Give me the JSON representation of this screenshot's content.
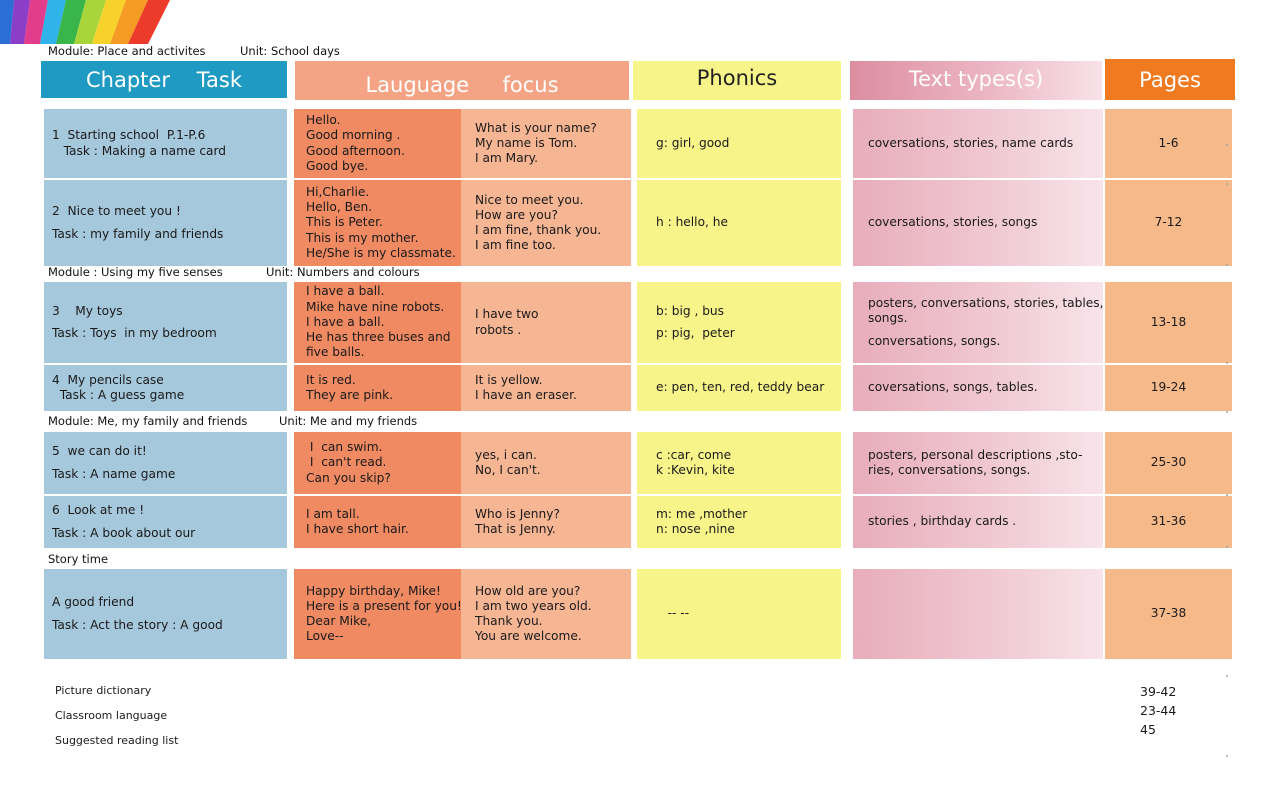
{
  "headers": {
    "chapter": "Chapter    Task",
    "language": "Lauguage     focus",
    "phonics": "Phonics",
    "text_types": "Text types(s)",
    "pages": "Pages"
  },
  "modules": [
    {
      "module": "Module: Place and activites",
      "unit": "Unit: School days"
    },
    {
      "module": "Module : Using my five senses",
      "unit": "Unit: Numbers and colours"
    },
    {
      "module": "Module:  Me, my family and friends",
      "unit": "Unit: Me and my friends"
    },
    {
      "module": "Story time",
      "unit": ""
    }
  ],
  "rows": [
    {
      "chapter": [
        "1  Starting school  P.1-P.6",
        "   Task : Making a name card"
      ],
      "lang_a": [
        "Hello.",
        "Good morning .",
        "Good afternoon.",
        "Good bye."
      ],
      "lang_b": [
        "What is your name?",
        "My name is Tom.",
        "I am Mary."
      ],
      "phonics": [
        "g: girl, good"
      ],
      "text_types": [
        "coversations, stories, name cards"
      ],
      "pages": "1-6"
    },
    {
      "chapter": [
        "2  Nice to meet you !",
        "",
        "Task : my family and friends"
      ],
      "lang_a": [
        "Hi,Charlie.",
        "Hello, Ben.",
        "This is Peter.",
        "This is my mother.",
        "He/She is my classmate."
      ],
      "lang_b": [
        "Nice to meet you.",
        "How are you?",
        "I am fine, thank you.",
        "I am fine too."
      ],
      "phonics": [
        "h : hello, he"
      ],
      "text_types": [
        "coversations, stories, songs"
      ],
      "pages": "7-12"
    },
    {
      "chapter": [
        "3    My toys",
        "",
        "Task : Toys  in my bedroom"
      ],
      "lang_a": [
        "I have a ball.",
        "Mike have nine robots.",
        "I have a ball.",
        "He has three buses and",
        "five balls."
      ],
      "lang_b": [
        "I have two",
        "robots ."
      ],
      "phonics": [
        "b: big , bus",
        "",
        "p: pig,  peter"
      ],
      "text_types": [
        "posters, conversations, stories, tables,",
        "songs.",
        "",
        "conversations, songs."
      ],
      "pages": "13-18"
    },
    {
      "chapter": [
        "4  My pencils case",
        "  Task : A guess game"
      ],
      "lang_a": [
        "It is red.",
        "They are pink."
      ],
      "lang_b": [
        "It is yellow.",
        "I have an eraser."
      ],
      "phonics": [
        "e: pen, ten, red, teddy bear"
      ],
      "text_types": [
        "coversations, songs, tables."
      ],
      "pages": "19-24"
    },
    {
      "chapter": [
        "5  we can do it!",
        "",
        "Task : A name game"
      ],
      "lang_a": [
        " I  can swim.",
        " I  can't read.",
        "Can you skip?"
      ],
      "lang_b": [
        "yes, i can.",
        "No, I can't."
      ],
      "phonics": [
        "c :car, come",
        "k :Kevin, kite"
      ],
      "text_types": [
        "posters, personal descriptions ,sto-",
        "ries, conversations, songs."
      ],
      "pages": "25-30"
    },
    {
      "chapter": [
        "6  Look at me !",
        "",
        "Task : A book about our"
      ],
      "lang_a": [
        "I am tall.",
        "I have short hair."
      ],
      "lang_b": [
        "Who is Jenny?",
        "That is Jenny."
      ],
      "phonics": [
        "m: me ,mother",
        "n: nose ,nine"
      ],
      "text_types": [
        "stories , birthday cards ."
      ],
      "pages": "31-36"
    },
    {
      "chapter": [
        "A good friend",
        "",
        "Task : Act the story : A good"
      ],
      "lang_a": [
        "Happy birthday, Mike!",
        "Here is a present for you!",
        "Dear Mike,",
        "Love--"
      ],
      "lang_b": [
        "How old are you?",
        "I am two years old.",
        "Thank you.",
        "You are welcome."
      ],
      "phonics": [
        "   -- --"
      ],
      "text_types": [],
      "pages": "37-38"
    }
  ],
  "extras": [
    {
      "label": "Picture dictionary",
      "pages": "39-42"
    },
    {
      "label": "Classroom language",
      "pages": "23-44"
    },
    {
      "label": "Suggested reading list",
      "pages": "45"
    }
  ]
}
